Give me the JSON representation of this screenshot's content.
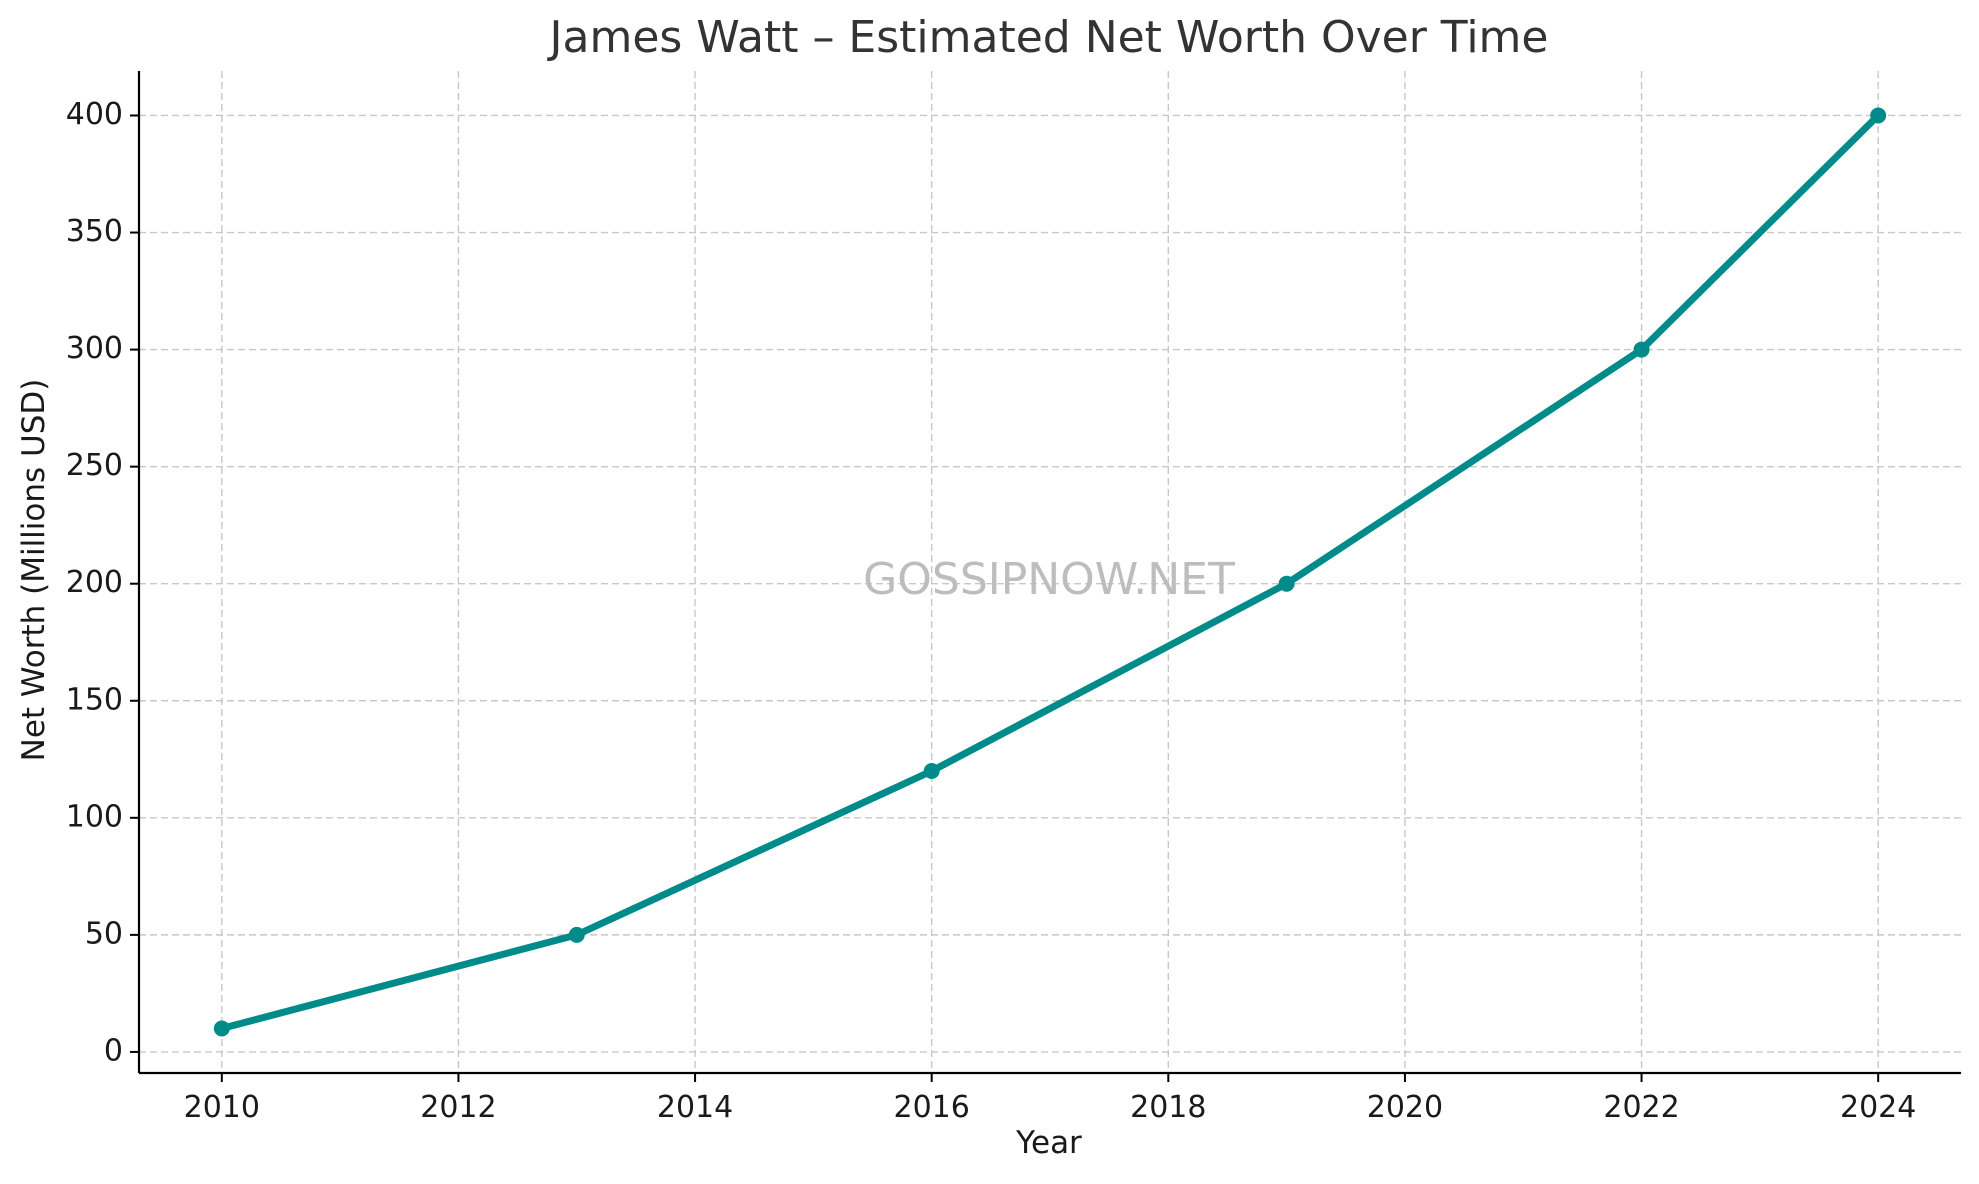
{
  "chart_data": {
    "type": "line",
    "title": "James Watt – Estimated Net Worth Over Time",
    "xlabel": "Year",
    "ylabel": "Net Worth (Millions USD)",
    "x_ticks": [
      2010,
      2012,
      2014,
      2016,
      2018,
      2020,
      2022,
      2024
    ],
    "y_ticks": [
      0,
      50,
      100,
      150,
      200,
      250,
      300,
      350,
      400
    ],
    "xlim": [
      2009.3,
      2024.7
    ],
    "ylim": [
      -9,
      419
    ],
    "grid": true,
    "series": [
      {
        "color": "#008b8b",
        "x": [
          2010,
          2013,
          2016,
          2019,
          2022,
          2024
        ],
        "y": [
          10,
          50,
          120,
          200,
          300,
          400
        ]
      }
    ],
    "watermark": "GOSSIPNOW.NET"
  }
}
